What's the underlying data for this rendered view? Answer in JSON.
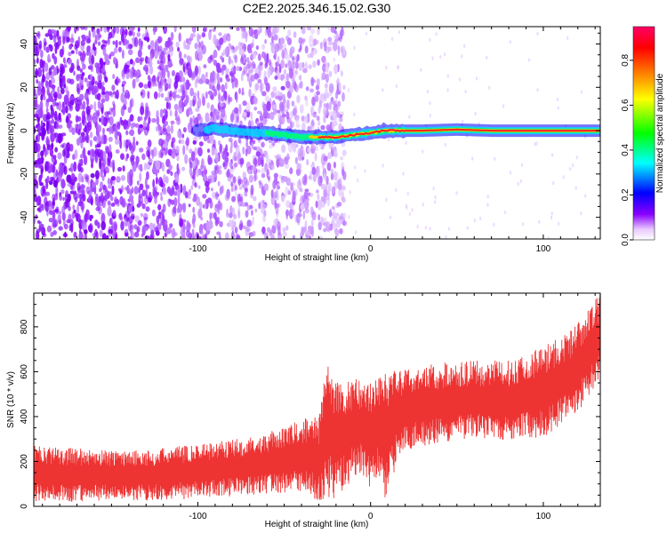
{
  "title": "C2E2.2025.346.15.02.G30",
  "chart_data": [
    {
      "type": "heatmap",
      "name": "spectrogram",
      "xlabel": "Height of straight line (km)",
      "ylabel": "Frequency (Hz)",
      "xlim": [
        -195,
        133
      ],
      "ylim": [
        -50,
        48
      ],
      "x_ticks": [
        -100,
        0,
        100
      ],
      "x_tick_labels": [
        "-100",
        "0",
        "100"
      ],
      "y_ticks": [
        -40,
        -20,
        0,
        20,
        40
      ],
      "y_tick_labels": [
        "-40",
        "-20",
        "0",
        "20",
        "40"
      ],
      "ridge": {
        "description_points_x_km": [
          -100,
          -90,
          -80,
          -70,
          -60,
          -50,
          -40,
          -30,
          -20,
          -10,
          0,
          10,
          20,
          30,
          50,
          70,
          100,
          133
        ],
        "frequency_hz": [
          0,
          1,
          0,
          -1,
          -1,
          -2,
          -3,
          -3,
          -3,
          -2,
          -1,
          0,
          0,
          0,
          0.5,
          0,
          0,
          0
        ]
      },
      "noise_region_km": [
        -195,
        -25
      ],
      "colorbar": {
        "label": "Normalized spectral amplitude",
        "range": [
          0,
          0.95
        ],
        "ticks": [
          0,
          0.2,
          0.4,
          0.6,
          0.8
        ],
        "tick_labels": [
          "0.0",
          "0.2",
          "0.4",
          "0.6",
          "0.8"
        ],
        "colors": [
          "#ffffff",
          "#8a00ff",
          "#0000ff",
          "#00ffff",
          "#00ff00",
          "#ffff00",
          "#ff8000",
          "#ff0000",
          "#ff0066"
        ]
      }
    },
    {
      "type": "line",
      "name": "snr",
      "xlabel": "Height of straight line (km)",
      "ylabel": "SNR (10 * v/v)",
      "xlim": [
        -195,
        133
      ],
      "ylim": [
        0,
        950
      ],
      "x_ticks": [
        -100,
        0,
        100
      ],
      "x_tick_labels": [
        "-100",
        "0",
        "100"
      ],
      "y_ticks": [
        0,
        200,
        400,
        600,
        800
      ],
      "y_tick_labels": [
        "0",
        "200",
        "400",
        "600",
        "800"
      ],
      "color": "#ee3333",
      "envelope": {
        "x": [
          -195,
          -170,
          -150,
          -130,
          -110,
          -90,
          -70,
          -50,
          -40,
          -30,
          -25,
          -20,
          -15,
          -10,
          -5,
          0,
          5,
          10,
          15,
          20,
          40,
          60,
          80,
          100,
          115,
          125,
          133
        ],
        "low": [
          20,
          20,
          25,
          25,
          30,
          40,
          50,
          60,
          60,
          20,
          40,
          20,
          80,
          120,
          150,
          80,
          120,
          0,
          200,
          250,
          280,
          300,
          290,
          300,
          380,
          470,
          560
        ],
        "high": [
          270,
          260,
          250,
          250,
          270,
          290,
          310,
          350,
          390,
          400,
          680,
          560,
          550,
          580,
          560,
          560,
          590,
          660,
          590,
          620,
          640,
          650,
          650,
          720,
          780,
          870,
          950
        ]
      }
    }
  ]
}
